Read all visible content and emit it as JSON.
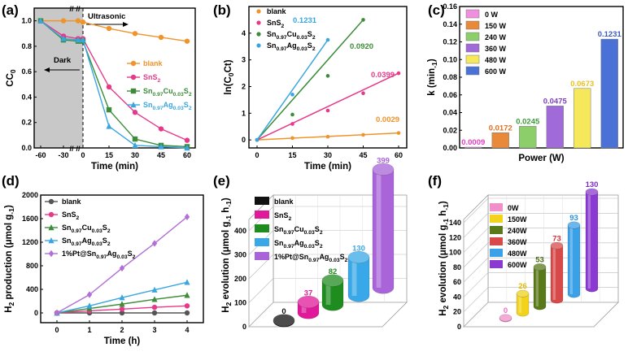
{
  "figure": {
    "panels": [
      "(a)",
      "(b)",
      "(c)",
      "(d)",
      "(e)",
      "(f)"
    ]
  },
  "chart_data": [
    {
      "id": "a",
      "type": "line",
      "xlabel": "Time (min)",
      "ylabel": "C/C0",
      "xticks": [
        "-60",
        "-30",
        "0",
        "15",
        "30",
        "45",
        "60"
      ],
      "yticks": [
        "0.0",
        "0.2",
        "0.4",
        "0.6",
        "0.8",
        "1.0"
      ],
      "ylim": [
        0,
        1.1
      ],
      "annotations": {
        "dark": "Dark",
        "light": "Ultrasonic"
      },
      "x": [
        -60,
        -30,
        -20,
        0,
        15,
        30,
        45,
        60
      ],
      "series": [
        {
          "name": "blank",
          "color": "#f0932b",
          "marker": "circle",
          "values": [
            1.0,
            1.0,
            1.0,
            0.99,
            0.94,
            0.9,
            0.87,
            0.84
          ]
        },
        {
          "name": "SnS2",
          "color": "#e8388a",
          "marker": "circle",
          "values": [
            1.0,
            0.88,
            0.86,
            0.86,
            0.48,
            0.28,
            0.15,
            0.06
          ]
        },
        {
          "name": "Sn0.97Cu0.03S2",
          "color": "#3c8c3a",
          "marker": "square",
          "values": [
            1.0,
            0.85,
            0.84,
            0.84,
            0.3,
            0.07,
            0.02,
            0.01
          ]
        },
        {
          "name": "Sn0.97Ag0.03S2",
          "color": "#3aa6e0",
          "marker": "triangle",
          "values": [
            1.0,
            0.86,
            0.85,
            0.85,
            0.17,
            0.02,
            0.01,
            0.0
          ]
        }
      ]
    },
    {
      "id": "b",
      "type": "scatter",
      "xlabel": "Time (min)",
      "ylabel": "ln(C0/Ct)",
      "xticks": [
        "0",
        "15",
        "30",
        "45",
        "60"
      ],
      "yticks": [
        "0",
        "1",
        "2",
        "3",
        "4"
      ],
      "ylim": [
        -0.3,
        5
      ],
      "series": [
        {
          "name": "blank",
          "color": "#f0932b",
          "k_label": "0.0029",
          "x": [
            0,
            15,
            30,
            45,
            60
          ],
          "values": [
            0,
            0.07,
            0.12,
            0.19,
            0.26
          ]
        },
        {
          "name": "SnS2",
          "color": "#e8388a",
          "k_label": "0.0399",
          "x": [
            0,
            15,
            30,
            45,
            60
          ],
          "values": [
            0,
            0.6,
            1.1,
            1.75,
            2.5
          ]
        },
        {
          "name": "Sn0.97Cu0.03S2",
          "color": "#3c8c3a",
          "k_label": "0.0920",
          "x": [
            0,
            15,
            30,
            45
          ],
          "values": [
            0,
            0.95,
            2.4,
            4.5
          ]
        },
        {
          "name": "Sn0.97Ag0.03S2",
          "color": "#3aa6e0",
          "k_label": "0.1231",
          "x": [
            0,
            15,
            30
          ],
          "values": [
            0,
            1.7,
            3.75
          ]
        }
      ]
    },
    {
      "id": "c",
      "type": "bar",
      "xlabel": "Power (W)",
      "ylabel": "k (min-1)",
      "yticks": [
        "0.00",
        "0.02",
        "0.04",
        "0.06",
        "0.08",
        "0.10",
        "0.12",
        "0.14",
        "0.16"
      ],
      "ylim": [
        0,
        0.16
      ],
      "categories": [
        "0 W",
        "150 W",
        "240 W",
        "360 W",
        "480 W",
        "600 W"
      ],
      "values": [
        0.0009,
        0.0172,
        0.0245,
        0.0475,
        0.0673,
        0.1231
      ],
      "labels": [
        "0.0009",
        "0.0172",
        "0.0245",
        "0.0475",
        "0.0673",
        "0.1231"
      ],
      "colors": [
        "#f08fe0",
        "#e88a3a",
        "#8ccf6a",
        "#a06ad8",
        "#f5e85a",
        "#4a72d6"
      ],
      "label_colors": [
        "#e040c0",
        "#e07020",
        "#3c9a3a",
        "#8040c0",
        "#e8c020",
        "#3a5ac0"
      ]
    },
    {
      "id": "d",
      "type": "line",
      "xlabel": "Time (h)",
      "ylabel": "H2 production (μmol g-1)",
      "xticks": [
        "0",
        "1",
        "2",
        "3",
        "4"
      ],
      "yticks": [
        "0",
        "400",
        "800",
        "1200",
        "1600",
        "2000"
      ],
      "ylim": [
        0,
        2000
      ],
      "x": [
        0,
        1,
        2,
        3,
        4
      ],
      "series": [
        {
          "name": "blank",
          "color": "#555555",
          "marker": "circle",
          "values": [
            0,
            0,
            0,
            0,
            0
          ]
        },
        {
          "name": "SnS2",
          "color": "#e8388a",
          "marker": "circle",
          "values": [
            0,
            35,
            65,
            95,
            120
          ]
        },
        {
          "name": "Sn0.97Cu0.03S2",
          "color": "#3c8c3a",
          "marker": "triangle",
          "values": [
            0,
            75,
            150,
            230,
            300
          ]
        },
        {
          "name": "Sn0.97Ag0.03S2",
          "color": "#3aa6e0",
          "marker": "triangle",
          "values": [
            0,
            120,
            260,
            390,
            520
          ]
        },
        {
          "name": "1%Pt@Sn0.97Ag0.03S2",
          "color": "#b070d8",
          "marker": "diamond",
          "values": [
            0,
            310,
            760,
            1180,
            1630
          ]
        }
      ]
    },
    {
      "id": "e",
      "type": "bar",
      "ylabel": "H2 evolution (μmol g-1 h-1)",
      "yticks": [
        "0",
        "100",
        "200",
        "300",
        "400"
      ],
      "ylim": [
        0,
        400
      ],
      "categories": [
        "blank",
        "SnS2",
        "Sn0.97Cu0.03S2",
        "Sn0.97Ag0.03S2",
        "1%Pt@Sn0.97Ag0.03S2"
      ],
      "values": [
        0,
        37,
        82,
        130,
        399
      ],
      "labels": [
        "0",
        "37",
        "82",
        "130",
        "399"
      ],
      "colors": [
        "#111111",
        "#e0189a",
        "#1f8c1f",
        "#39a8e8",
        "#a864d8"
      ],
      "label_colors": [
        "#111111",
        "#e0189a",
        "#1f8c1f",
        "#39a8e8",
        "#a864d8"
      ]
    },
    {
      "id": "f",
      "type": "bar",
      "ylabel": "H2 evolution (μmol g-1 h-1)",
      "yticks": [
        "0",
        "20",
        "40",
        "60",
        "80",
        "100",
        "120",
        "140"
      ],
      "ylim": [
        0,
        140
      ],
      "categories": [
        "0W",
        "150W",
        "240W",
        "360W",
        "480W",
        "600W"
      ],
      "values": [
        0,
        26,
        53,
        73,
        93,
        130
      ],
      "labels": [
        "0",
        "26",
        "53",
        "73",
        "93",
        "130"
      ],
      "colors": [
        "#f08fc8",
        "#f2d21a",
        "#5a7a1a",
        "#d84a4a",
        "#3aa0e8",
        "#8a3ad0"
      ],
      "label_colors": [
        "#f070c0",
        "#e8b800",
        "#4a6a10",
        "#d03030",
        "#2a90e0",
        "#7a2ac8"
      ]
    }
  ]
}
